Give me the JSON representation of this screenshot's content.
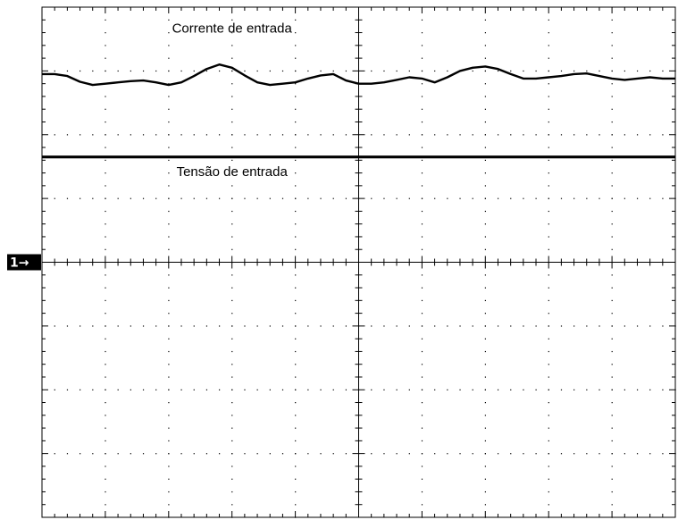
{
  "chart_data": {
    "type": "line",
    "title": "",
    "xlabel": "",
    "ylabel": "",
    "grid": true,
    "x_divisions": 10,
    "y_divisions": 8,
    "xlim": [
      0,
      10
    ],
    "ylim": [
      -4,
      4
    ],
    "ground_marker": {
      "label": "1→",
      "y": 0
    },
    "series": [
      {
        "name": "Corrente de entrada",
        "label_position": {
          "x": 3.0,
          "y": 3.6
        },
        "x": [
          0,
          0.2,
          0.4,
          0.6,
          0.8,
          1.0,
          1.2,
          1.4,
          1.6,
          1.8,
          2.0,
          2.2,
          2.4,
          2.6,
          2.8,
          3.0,
          3.2,
          3.4,
          3.6,
          3.8,
          4.0,
          4.2,
          4.4,
          4.6,
          4.8,
          5.0,
          5.2,
          5.4,
          5.6,
          5.8,
          6.0,
          6.2,
          6.4,
          6.6,
          6.8,
          7.0,
          7.2,
          7.4,
          7.6,
          7.8,
          8.0,
          8.2,
          8.4,
          8.6,
          8.8,
          9.0,
          9.2,
          9.4,
          9.6,
          9.8,
          10.0
        ],
        "values": [
          2.95,
          2.95,
          2.92,
          2.83,
          2.78,
          2.8,
          2.82,
          2.84,
          2.85,
          2.82,
          2.78,
          2.82,
          2.92,
          3.03,
          3.1,
          3.05,
          2.93,
          2.82,
          2.78,
          2.8,
          2.82,
          2.88,
          2.93,
          2.95,
          2.85,
          2.8,
          2.8,
          2.82,
          2.86,
          2.9,
          2.88,
          2.82,
          2.9,
          3.0,
          3.05,
          3.07,
          3.03,
          2.95,
          2.88,
          2.88,
          2.9,
          2.92,
          2.95,
          2.96,
          2.92,
          2.88,
          2.86,
          2.88,
          2.9,
          2.88,
          2.88
        ],
        "color": "#000000"
      },
      {
        "name": "Tensão de entrada",
        "label_position": {
          "x": 3.0,
          "y": 1.35
        },
        "x": [
          0,
          0.5,
          1.0,
          1.5,
          2.0,
          2.5,
          3.0,
          3.5,
          4.0,
          4.5,
          5.0,
          5.5,
          6.0,
          6.5,
          7.0,
          7.5,
          8.0,
          8.5,
          9.0,
          9.5,
          10.0
        ],
        "values": [
          1.65,
          1.65,
          1.65,
          1.65,
          1.65,
          1.65,
          1.65,
          1.65,
          1.65,
          1.65,
          1.65,
          1.65,
          1.65,
          1.65,
          1.65,
          1.65,
          1.65,
          1.65,
          1.65,
          1.65,
          1.65
        ],
        "color": "#000000"
      }
    ]
  }
}
